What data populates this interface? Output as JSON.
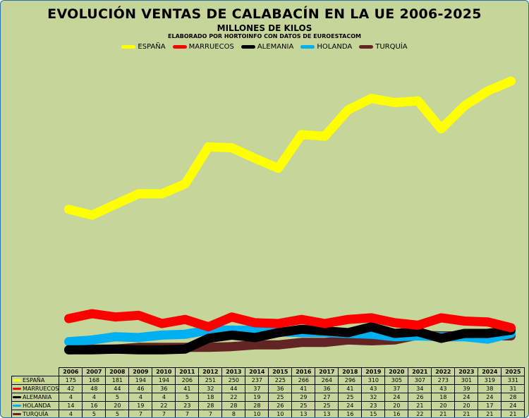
{
  "chart_data": {
    "type": "line",
    "title": "EVOLUCIÓN VENTAS DE CALABACÍN EN LA UE 2006-2025",
    "subtitle": "MILLONES DE KILOS",
    "credit": "ELABORADO POR HORTOINFO CON DATOS DE EUROESTACOM",
    "xlabel": "",
    "ylabel": "",
    "ylim": [
      0,
      350
    ],
    "grid": false,
    "legend_position": "top",
    "categories": [
      "2006",
      "2007",
      "2008",
      "2009",
      "2010",
      "2011",
      "2012",
      "2013",
      "2014",
      "2015",
      "2016",
      "2017",
      "2018",
      "2019",
      "2020",
      "2021",
      "2022",
      "2023",
      "2024",
      "2025"
    ],
    "series": [
      {
        "name": "ESPAÑA",
        "color": "#ffff00",
        "values": [
          175,
          168,
          181,
          194,
          194,
          206,
          251,
          250,
          237,
          225,
          266,
          264,
          296,
          310,
          305,
          307,
          273,
          301,
          319,
          331
        ]
      },
      {
        "name": "MARRUECOS",
        "color": "#ff0000",
        "values": [
          42,
          48,
          44,
          46,
          36,
          41,
          32,
          44,
          37,
          36,
          41,
          36,
          41,
          43,
          37,
          34,
          43,
          39,
          38,
          31
        ]
      },
      {
        "name": "ALEMANIA",
        "color": "#000000",
        "values": [
          4,
          4,
          5,
          4,
          4,
          5,
          18,
          22,
          19,
          25,
          29,
          27,
          25,
          32,
          24,
          26,
          18,
          24,
          24,
          28
        ]
      },
      {
        "name": "HOLANDA",
        "color": "#00b0f0",
        "values": [
          14,
          16,
          20,
          19,
          22,
          23,
          28,
          28,
          28,
          26,
          25,
          25,
          24,
          23,
          20,
          21,
          20,
          20,
          17,
          24
        ]
      },
      {
        "name": "TURQUÍA",
        "color": "#632523",
        "values": [
          4,
          5,
          5,
          7,
          7,
          7,
          7,
          8,
          10,
          10,
          13,
          13,
          16,
          15,
          16,
          22,
          21,
          21,
          21,
          21
        ]
      }
    ]
  }
}
